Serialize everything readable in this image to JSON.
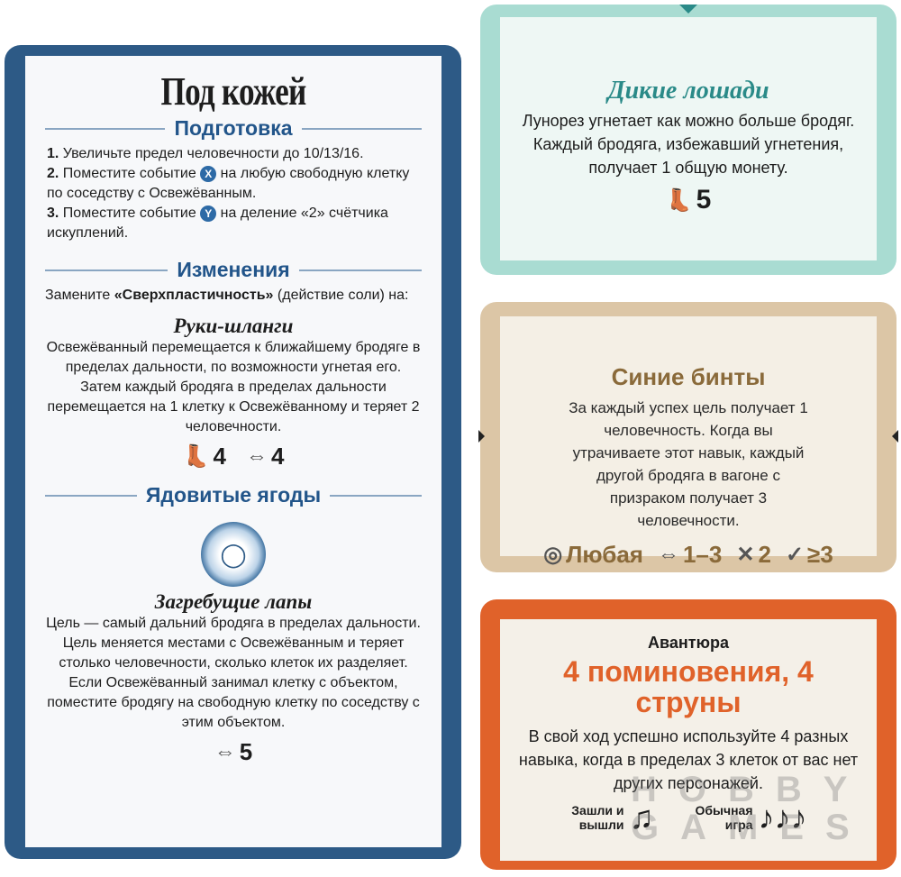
{
  "rules_card": {
    "title": "Под кожей",
    "setup_heading": "Подготовка",
    "setup_items": [
      {
        "num": "1.",
        "text": "Увеличьте предел человечности до 10/13/16."
      },
      {
        "num": "2.",
        "before": "Поместите событие",
        "event": "X",
        "after": "на любую свободную клетку по соседству с Освежёванным."
      },
      {
        "num": "3.",
        "before": "Поместите событие",
        "event": "Y",
        "after": "на деление «2» счётчика искуплений."
      }
    ],
    "changes_heading": "Изменения",
    "changes_intro_before": "Замените ",
    "changes_intro_bold": "«Сверхпластичность»",
    "changes_intro_after": " (действие соли) на:",
    "ability1_title": "Руки-шланги",
    "ability1_text": "Освежёванный перемещается к ближайшему бродяге в пределах дальности, по возможности угнетая его. Затем каждый бродяга в пределах дальности перемещается на 1 клетку к Освежё­ванному и теряет 2 человечности.",
    "ability1_oppress": "4",
    "ability1_range": "4",
    "berries_heading": "Ядовитые ягоды",
    "ability2_title": "Загребущие лапы",
    "ability2_text": "Цель — самый дальний бродяга в пределах даль­ности. Цель меняется местами с Освежёванным и теряет столько человечности, сколько клеток их разделяет. Если Освежёванный занимал клет­ку с объектом, поместите бродягу на свободную клетку по соседству с этим объектом.",
    "ability2_range": "5"
  },
  "horses_card": {
    "title": "Дикие лошади",
    "text": "Лунорез угнетает как можно больше бродяг. Каждый бродяга, избежавший угнетения, получает 1 общую монету.",
    "oppress": "5"
  },
  "bandages_card": {
    "title": "Синие бинты",
    "text": "За каждый успех цель получает 1 человечность. Когда вы утрачиваете этот навык, каждый другой бродяга в вагоне с призраком получает 3 человечности.",
    "target": "Любая",
    "range": "1–3",
    "damage": "2",
    "check": "≥3"
  },
  "adventure_card": {
    "label": "Авантюра",
    "title": "4 поминовения, 4 струны",
    "text": "В свой ход успешно используйте 4 разных навыка, когда в пределах 3 клеток от вас нет других персонажей.",
    "quick_label": "Зашли и вышли",
    "quick_notes": 2,
    "normal_label": "Обычная игра",
    "normal_notes": 3
  },
  "watermark": "HOBBY GAMES",
  "colors": {
    "blue": "#2d5a86",
    "teal": "#a9dcd2",
    "beige": "#dcc6a6",
    "orange": "#e0622a",
    "accent_teal": "#2a8a88",
    "accent_brown": "#8a6a3a",
    "accent_orange": "#e0622a"
  }
}
